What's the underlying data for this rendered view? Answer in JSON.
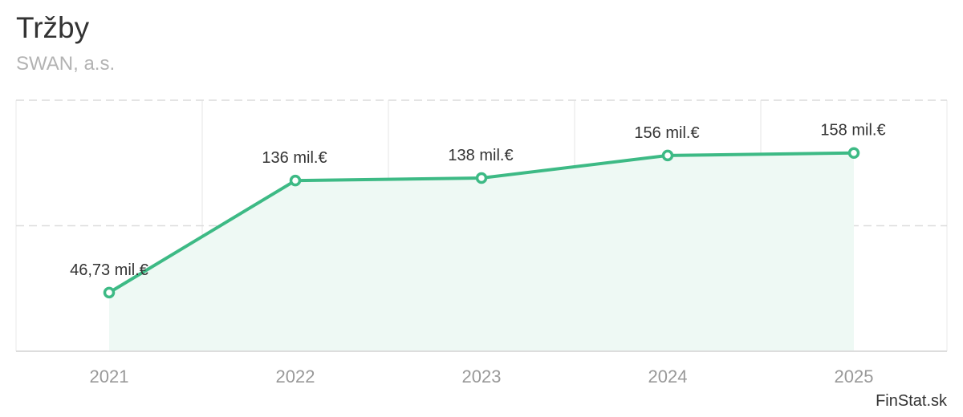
{
  "header": {
    "title": "Tržby",
    "subtitle": "SWAN, a.s."
  },
  "credit": "FinStat.sk",
  "colors": {
    "line": "#3dba85",
    "area": "#eef9f4",
    "grid": "#dcdcdc"
  },
  "chart_data": {
    "type": "area",
    "title": "Tržby",
    "subtitle": "SWAN, a.s.",
    "categories": [
      "2021",
      "2022",
      "2023",
      "2024",
      "2025"
    ],
    "series": [
      {
        "values": [
          46.73,
          136,
          138,
          156,
          158
        ],
        "labels": [
          "46,73 mil.€",
          "136 mil.€",
          "138 mil.€",
          "156 mil.€",
          "158 mil.€"
        ]
      }
    ],
    "ylim": [
      0,
      200
    ],
    "grid": true,
    "legend": "none"
  }
}
